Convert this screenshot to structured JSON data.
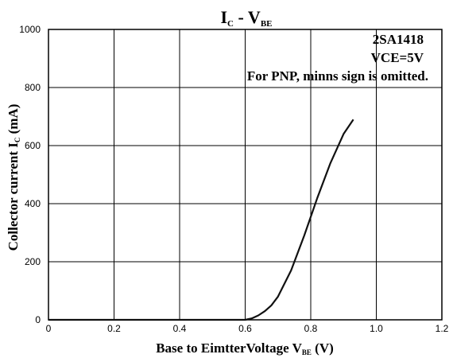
{
  "chart_data": {
    "type": "line",
    "title": {
      "main": "I",
      "main_sub": "C",
      "sep": " - V",
      "sep_sub": "BE"
    },
    "xlabel": {
      "text": "Base to EimtterVoltage V",
      "sub": "BE",
      "unit": " (V)"
    },
    "ylabel": {
      "text": "Collector current  I",
      "sub": "C",
      "unit": " (mA)"
    },
    "xlim": [
      0,
      1.2
    ],
    "ylim": [
      0,
      1000
    ],
    "x_ticks": [
      "0",
      "0.2",
      "0.4",
      "0.6",
      "0.8",
      "1.0",
      "1.2"
    ],
    "y_ticks": [
      "0",
      "200",
      "400",
      "600",
      "800",
      "1000"
    ],
    "grid": true,
    "annotations": [
      "2SA1418",
      "VCE=5V",
      "For PNP, minns sign is omitted."
    ],
    "series": [
      {
        "x": [
          0.0,
          0.6,
          0.62,
          0.64,
          0.66,
          0.68,
          0.7,
          0.74,
          0.78,
          0.82,
          0.86,
          0.9,
          0.93
        ],
        "y": [
          0,
          0,
          5,
          15,
          30,
          50,
          80,
          170,
          290,
          420,
          540,
          640,
          690
        ]
      }
    ]
  }
}
